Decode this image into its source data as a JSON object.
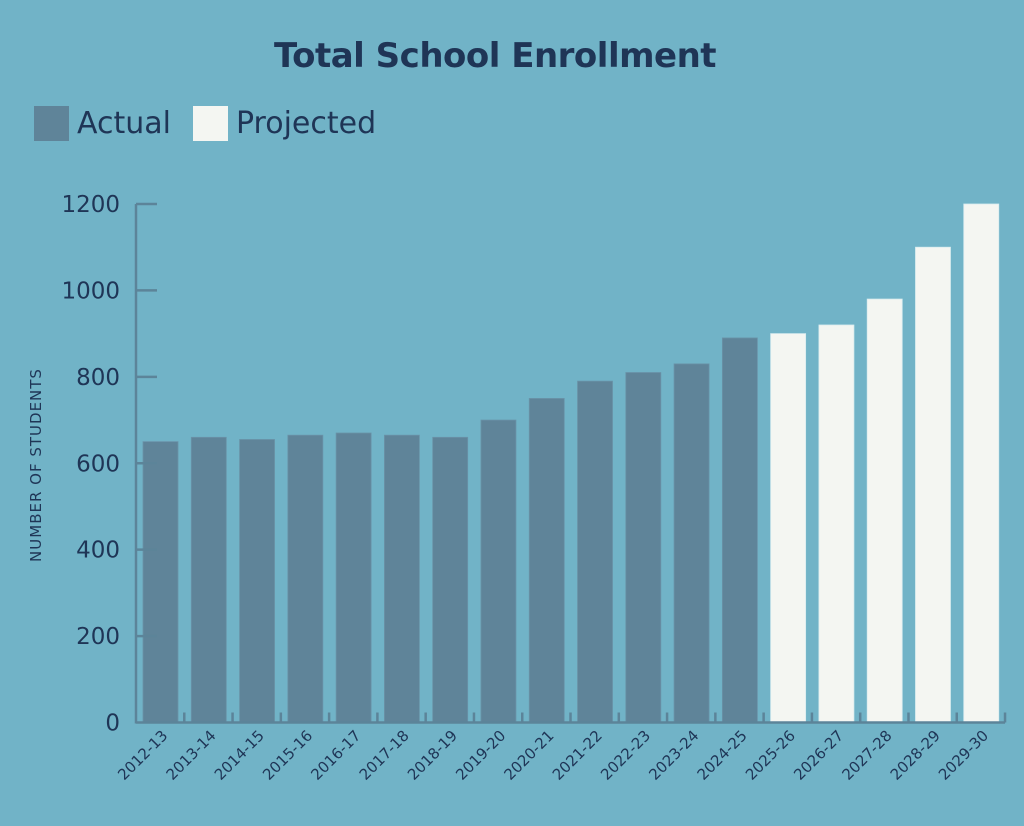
{
  "chart_data": {
    "type": "bar",
    "title": "Total School Enrollment",
    "xlabel": "",
    "ylabel": "NUMBER OF STUDENTS",
    "ylim": [
      0,
      1200
    ],
    "yticks": [
      0,
      200,
      400,
      600,
      800,
      1000,
      1200
    ],
    "grid": false,
    "legend_position": "top-left",
    "legend": [
      {
        "name": "Actual",
        "color": "#5f8499"
      },
      {
        "name": "Projected",
        "color": "#f4f6f2"
      }
    ],
    "categories": [
      "2012-13",
      "2013-14",
      "2014-15",
      "2015-16",
      "2016-17",
      "2017-18",
      "2018-19",
      "2019-20",
      "2020-21",
      "2021-22",
      "2022-23",
      "2023-24",
      "2024-25",
      "2025-26",
      "2026-27",
      "2027-28",
      "2028-29",
      "2029-30"
    ],
    "values": [
      650,
      660,
      655,
      665,
      670,
      665,
      660,
      700,
      750,
      790,
      810,
      830,
      890,
      900,
      920,
      980,
      1100,
      1200
    ],
    "series_type": [
      "Actual",
      "Actual",
      "Actual",
      "Actual",
      "Actual",
      "Actual",
      "Actual",
      "Actual",
      "Actual",
      "Actual",
      "Actual",
      "Actual",
      "Actual",
      "Projected",
      "Projected",
      "Projected",
      "Projected",
      "Projected"
    ]
  },
  "colors": {
    "background": "#71b3c7",
    "text": "#1f3556",
    "axis": "#5c8499"
  }
}
